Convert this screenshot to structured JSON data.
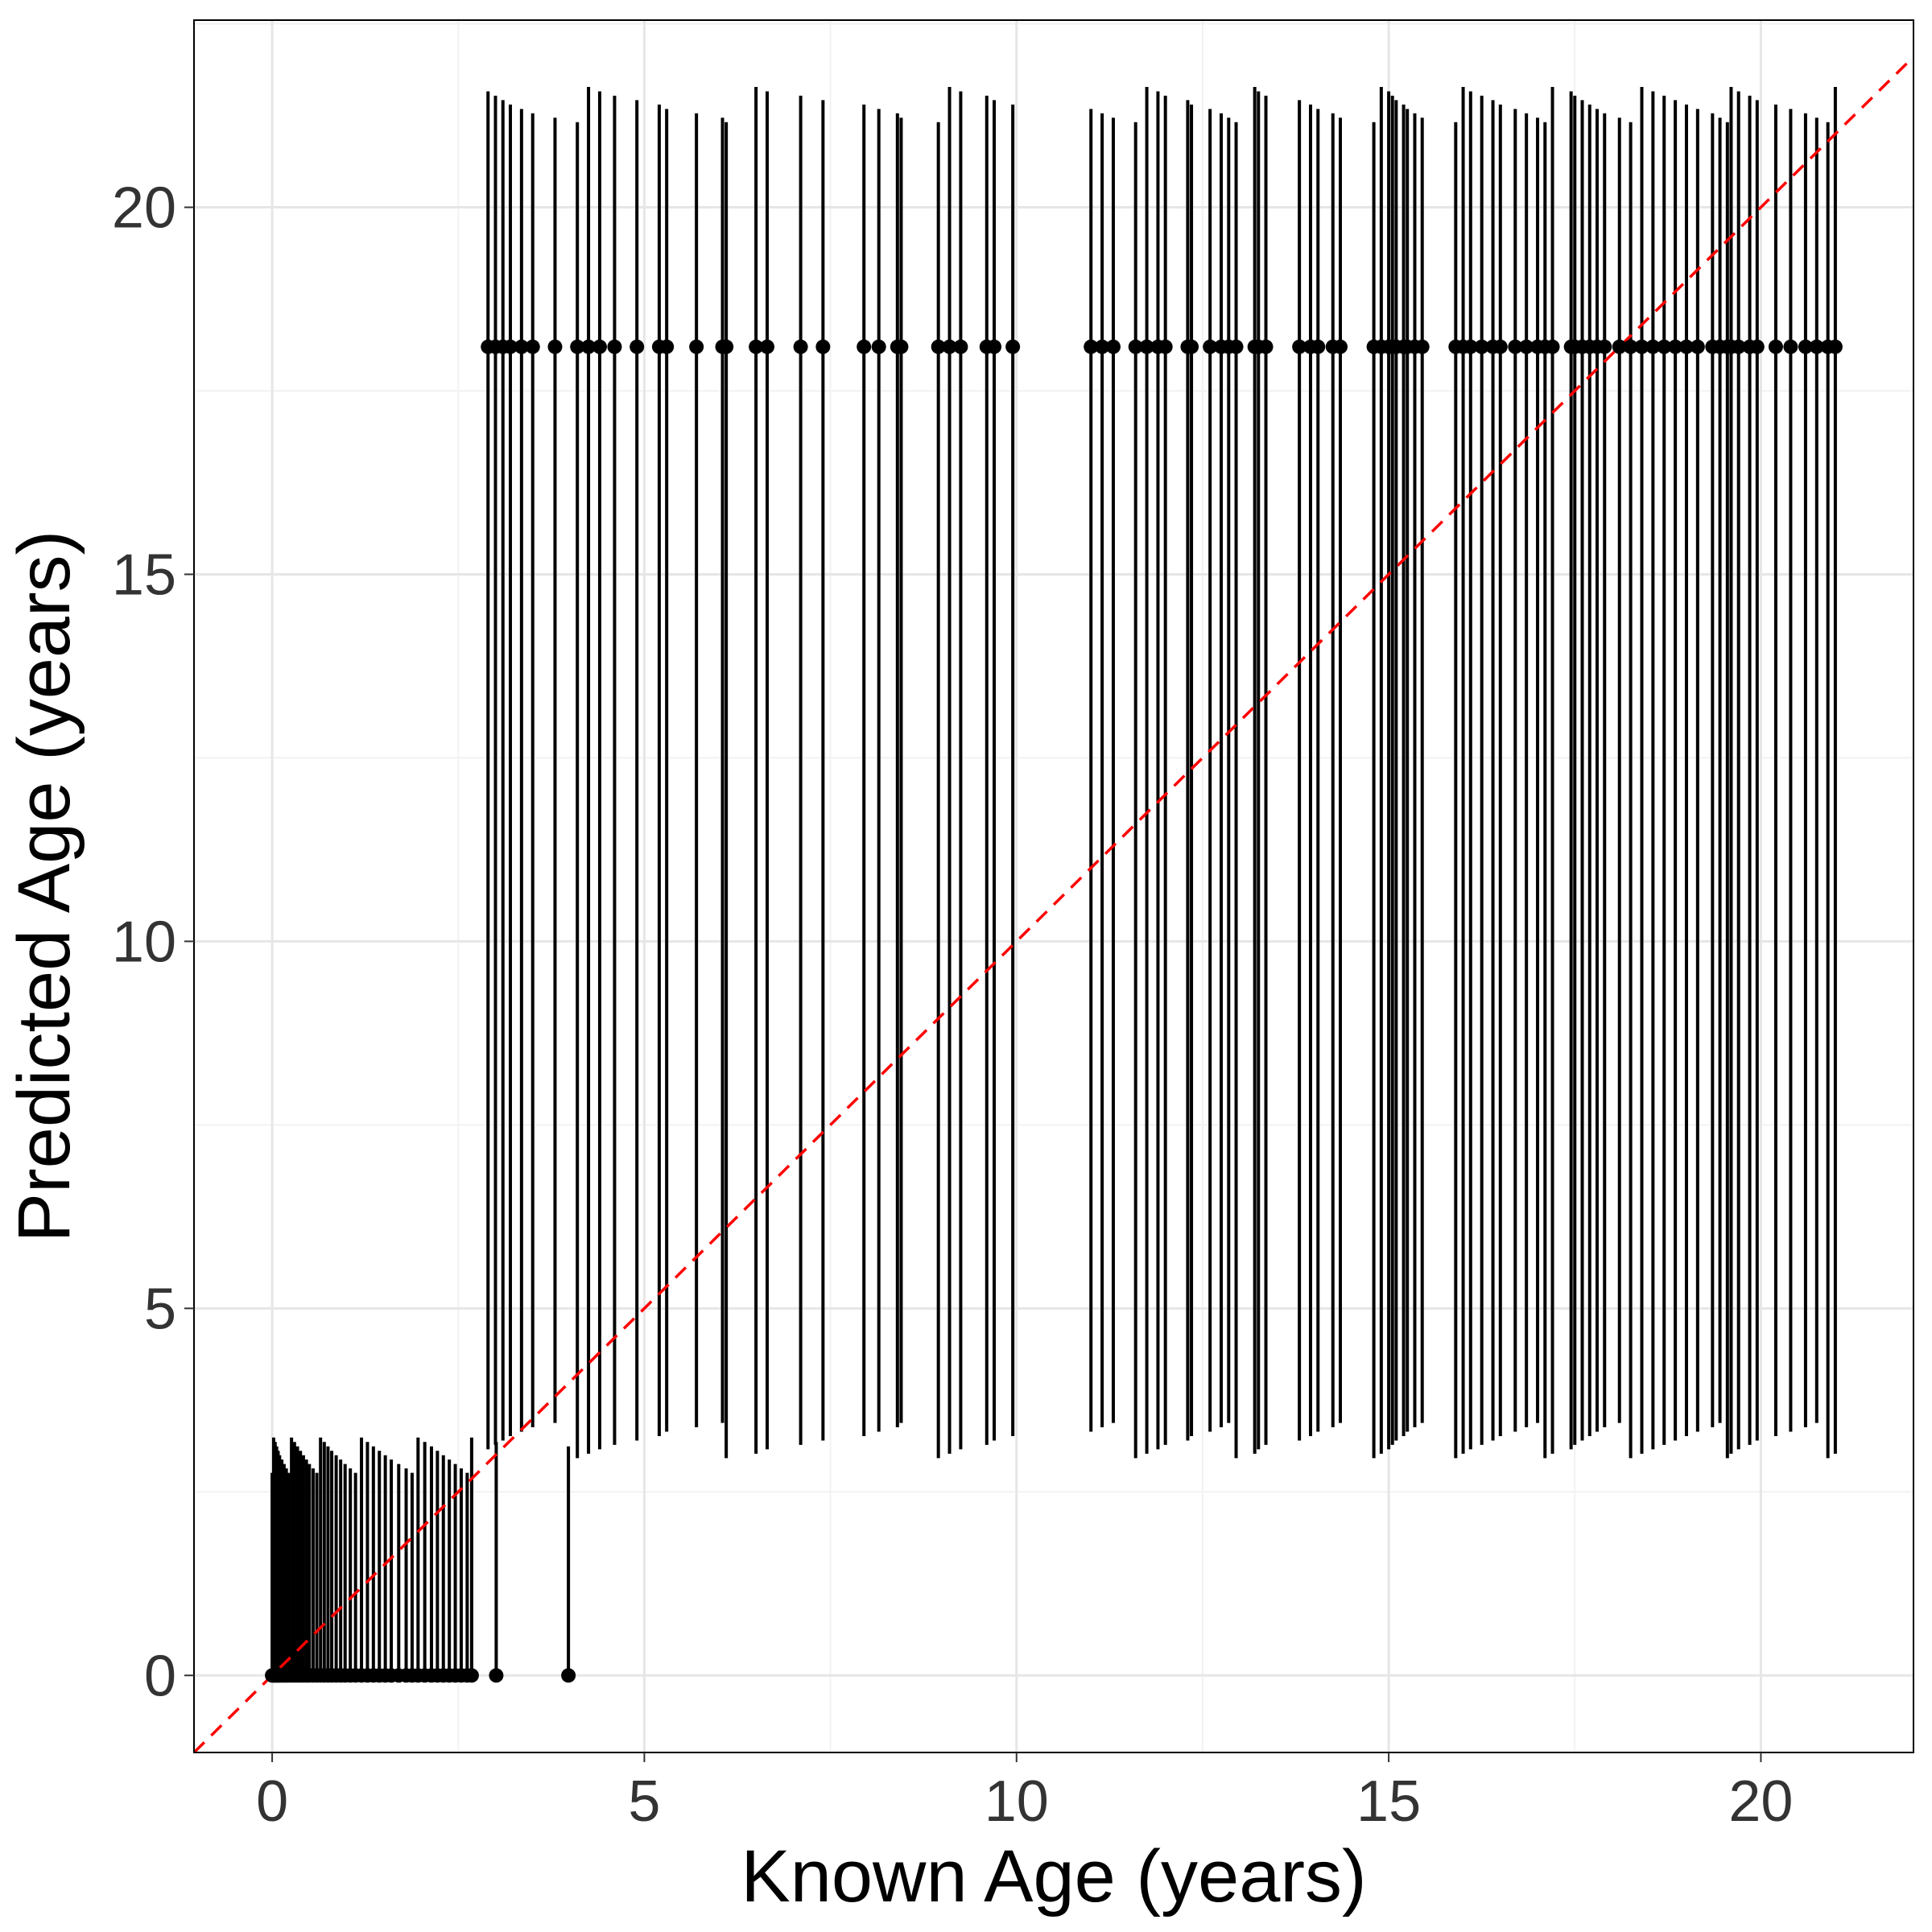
{
  "chart_data": {
    "type": "scatter",
    "title": "",
    "xlabel": "Known Age (years)",
    "ylabel": "Predicted Age (years)",
    "xlim": [
      -1.05,
      22.05
    ],
    "ylim": [
      -1.05,
      22.55
    ],
    "x_ticks": [
      0,
      5,
      10,
      15,
      20
    ],
    "y_ticks": [
      0,
      5,
      10,
      15,
      20
    ],
    "x_tick_labels": [
      "0",
      "5",
      "10",
      "15",
      "20"
    ],
    "y_tick_labels": [
      "0",
      "5",
      "10",
      "15",
      "20"
    ],
    "grid": true,
    "legend": "none",
    "point_color": "#000000",
    "reference_line": {
      "type": "identity",
      "color": "#ff0000",
      "style": "dashed"
    },
    "groups": [
      {
        "predicted": 0,
        "lower": 0,
        "upper": 3.0,
        "known_ages": [
          0.0,
          0.02,
          0.04,
          0.06,
          0.08,
          0.1,
          0.13,
          0.16,
          0.19,
          0.22,
          0.26,
          0.3,
          0.34,
          0.38,
          0.42,
          0.46,
          0.5,
          0.55,
          0.6,
          0.65,
          0.7,
          0.75,
          0.8,
          0.86,
          0.92,
          0.98,
          1.05,
          1.12,
          1.2,
          1.28,
          1.36,
          1.44,
          1.52,
          1.6,
          1.7,
          1.8,
          1.88,
          1.96,
          2.05,
          2.14,
          2.22,
          2.3,
          2.38,
          2.46,
          2.54,
          2.62,
          2.68,
          3.01,
          3.98
        ]
      },
      {
        "predicted": 18.1,
        "lower": 3.2,
        "upper": 21.4,
        "known_ages": [
          2.9,
          3.0,
          3.1,
          3.2,
          3.35,
          3.5,
          3.8,
          4.1,
          4.25,
          4.4,
          4.6,
          4.9,
          5.2,
          5.3,
          5.7,
          6.05,
          6.1,
          6.5,
          6.65,
          7.1,
          7.4,
          7.95,
          8.15,
          8.4,
          8.45,
          8.95,
          9.1,
          9.25,
          9.6,
          9.7,
          9.95,
          11.0,
          11.15,
          11.3,
          11.6,
          11.75,
          11.9,
          12.0,
          12.3,
          12.35,
          12.6,
          12.75,
          12.85,
          12.95,
          13.2,
          13.25,
          13.35,
          13.8,
          13.95,
          14.05,
          14.25,
          14.35,
          14.8,
          14.9,
          15.0,
          15.05,
          15.1,
          15.2,
          15.25,
          15.35,
          15.45,
          15.9,
          16.0,
          16.1,
          16.25,
          16.4,
          16.5,
          16.7,
          16.85,
          17.0,
          17.1,
          17.2,
          17.45,
          17.5,
          17.6,
          17.7,
          17.8,
          17.9,
          18.1,
          18.25,
          18.4,
          18.55,
          18.7,
          18.85,
          19.0,
          19.15,
          19.35,
          19.45,
          19.55,
          19.6,
          19.7,
          19.85,
          19.95,
          20.2,
          20.4,
          20.6,
          20.75,
          20.9,
          21.0
        ]
      }
    ]
  }
}
